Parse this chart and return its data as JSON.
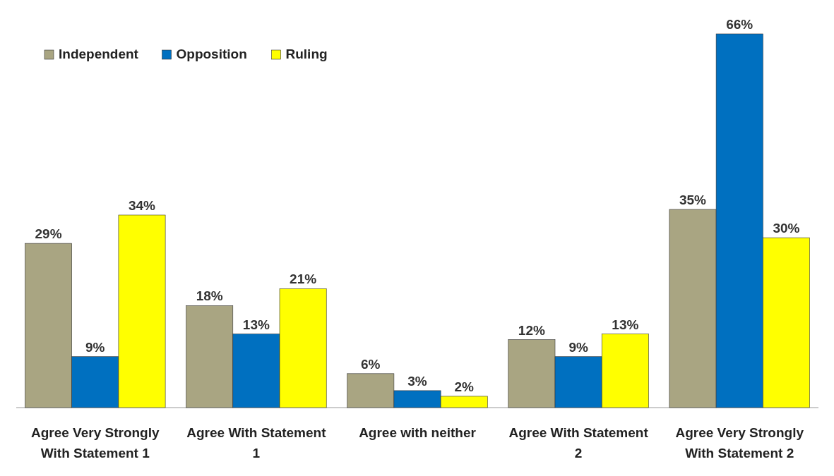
{
  "chart_data": {
    "type": "bar",
    "categories": [
      "Agree Very Strongly With Statement 1",
      "Agree With Statement 1",
      "Agree with neither",
      "Agree With Statement 2",
      "Agree Very Strongly With Statement 2"
    ],
    "series": [
      {
        "name": "Independent",
        "color": "#a9a582",
        "values": [
          29,
          18,
          6,
          12,
          35
        ],
        "value_labels": [
          "29%",
          "18%",
          "6%",
          "12%",
          "35%"
        ]
      },
      {
        "name": "Opposition",
        "color": "#0070c0",
        "values": [
          9,
          13,
          3,
          9,
          66
        ],
        "value_labels": [
          "9%",
          "13%",
          "3%",
          "9%",
          "66%"
        ]
      },
      {
        "name": "Ruling",
        "color": "#ffff00",
        "values": [
          34,
          21,
          2,
          13,
          30
        ],
        "value_labels": [
          "34%",
          "21%",
          "2%",
          "13%",
          "30%"
        ]
      }
    ],
    "legend": "top left"
  }
}
